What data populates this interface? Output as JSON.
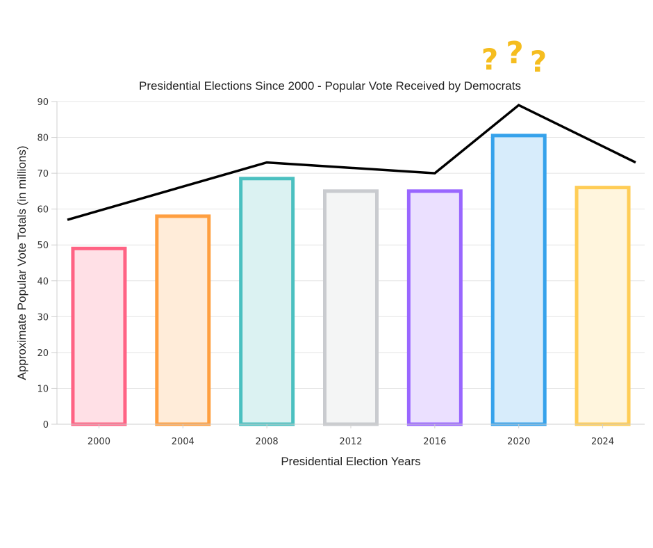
{
  "chart_data": {
    "type": "bar",
    "title": "Presidential Elections Since 2000 - Popular Vote Received by Democrats",
    "xlabel": "Presidential Election Years",
    "ylabel": "Approximate Popular Vote Totals (in millions)",
    "categories": [
      "2000",
      "2004",
      "2008",
      "2012",
      "2016",
      "2020",
      "2024"
    ],
    "series": [
      {
        "type": "bar",
        "values": [
          49.5,
          58.5,
          69,
          65.5,
          65.5,
          81,
          66.5
        ]
      },
      {
        "type": "line",
        "color": "#000000",
        "x": [
          "2000",
          "2008",
          "2016",
          "2020",
          "2024"
        ],
        "values": [
          57,
          73,
          70,
          89,
          73
        ]
      }
    ],
    "ylim": [
      0,
      90
    ],
    "yticks": [
      0,
      10,
      20,
      30,
      40,
      50,
      60,
      70,
      80,
      90
    ],
    "grid": true,
    "legend": "none",
    "bar_colors": [
      "#ff6384",
      "#ff9f40",
      "#4bc0c0",
      "#c9cbcf",
      "#9966ff",
      "#36a2eb",
      "#ffcd56"
    ],
    "bar_fills": [
      "#ffe0e6",
      "#ffecd9",
      "#dbf2f2",
      "#f4f5f5",
      "#ebe0ff",
      "#d7ecfb",
      "#fff5dd"
    ],
    "annotation": {
      "text": "???",
      "color": "#f5bd1f"
    }
  }
}
